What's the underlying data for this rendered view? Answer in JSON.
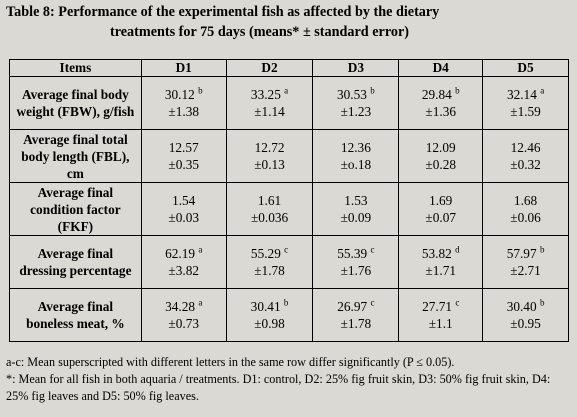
{
  "caption": {
    "line1": "Table 8: Performance of the experimental fish as affected by the dietary",
    "line2": "treatments for 75 days (means* ± standard error)"
  },
  "table": {
    "headers": [
      "Items",
      "D1",
      "D2",
      "D3",
      "D4",
      "D5"
    ],
    "rows": [
      {
        "item": "Average final body weight (FBW), g/fish",
        "cells": [
          {
            "value": "30.12",
            "sup": "b",
            "se": "±1.38"
          },
          {
            "value": "33.25",
            "sup": "a",
            "se": "±1.14"
          },
          {
            "value": "30.53",
            "sup": "b",
            "se": "±1.23"
          },
          {
            "value": "29.84",
            "sup": "b",
            "se": "±1.36"
          },
          {
            "value": "32.14",
            "sup": "a",
            "se": "±1.59"
          }
        ]
      },
      {
        "item": "Average final total body length (FBL), cm",
        "cells": [
          {
            "value": "12.57",
            "sup": "",
            "se": "±0.35"
          },
          {
            "value": "12.72",
            "sup": "",
            "se": "±0.13"
          },
          {
            "value": "12.36",
            "sup": "",
            "se": "±o.18"
          },
          {
            "value": "12.09",
            "sup": "",
            "se": "±0.28"
          },
          {
            "value": "12.46",
            "sup": "",
            "se": "±0.32"
          }
        ]
      },
      {
        "item": "Average final condition factor (FKF)",
        "cells": [
          {
            "value": "1.54",
            "sup": "",
            "se": "±0.03"
          },
          {
            "value": "1.61",
            "sup": "",
            "se": "±0.036"
          },
          {
            "value": "1.53",
            "sup": "",
            "se": "±0.09"
          },
          {
            "value": "1.69",
            "sup": "",
            "se": "±0.07"
          },
          {
            "value": "1.68",
            "sup": "",
            "se": "±0.06"
          }
        ]
      },
      {
        "item": "Average final dressing percentage",
        "cells": [
          {
            "value": "62.19",
            "sup": "a",
            "se": "±3.82"
          },
          {
            "value": "55.29",
            "sup": "c",
            "se": "±1.78"
          },
          {
            "value": "55.39",
            "sup": "c",
            "se": "±1.76"
          },
          {
            "value": "53.82",
            "sup": "d",
            "se": "±1.71"
          },
          {
            "value": "57.97",
            "sup": "b",
            "se": "±2.71"
          }
        ]
      },
      {
        "item": "Average final boneless meat, %",
        "cells": [
          {
            "value": "34.28",
            "sup": "a",
            "se": "±0.73"
          },
          {
            "value": "30.41",
            "sup": "b",
            "se": "±0.98"
          },
          {
            "value": "26.97",
            "sup": "c",
            "se": "±1.78"
          },
          {
            "value": "27.71",
            "sup": "c",
            "se": "±1.1"
          },
          {
            "value": "30.40",
            "sup": "b",
            "se": "±0.95"
          }
        ]
      }
    ]
  },
  "notes": {
    "line1": "a-c: Mean superscripted with different letters in the same row differ significantly (P ≤ 0.05).",
    "line2": "*: Mean for all fish in both aquaria / treatments. D1: control, D2: 25% fig fruit skin, D3: 50% fig fruit skin, D4: 25% fig leaves and D5: 50% fig leaves."
  }
}
